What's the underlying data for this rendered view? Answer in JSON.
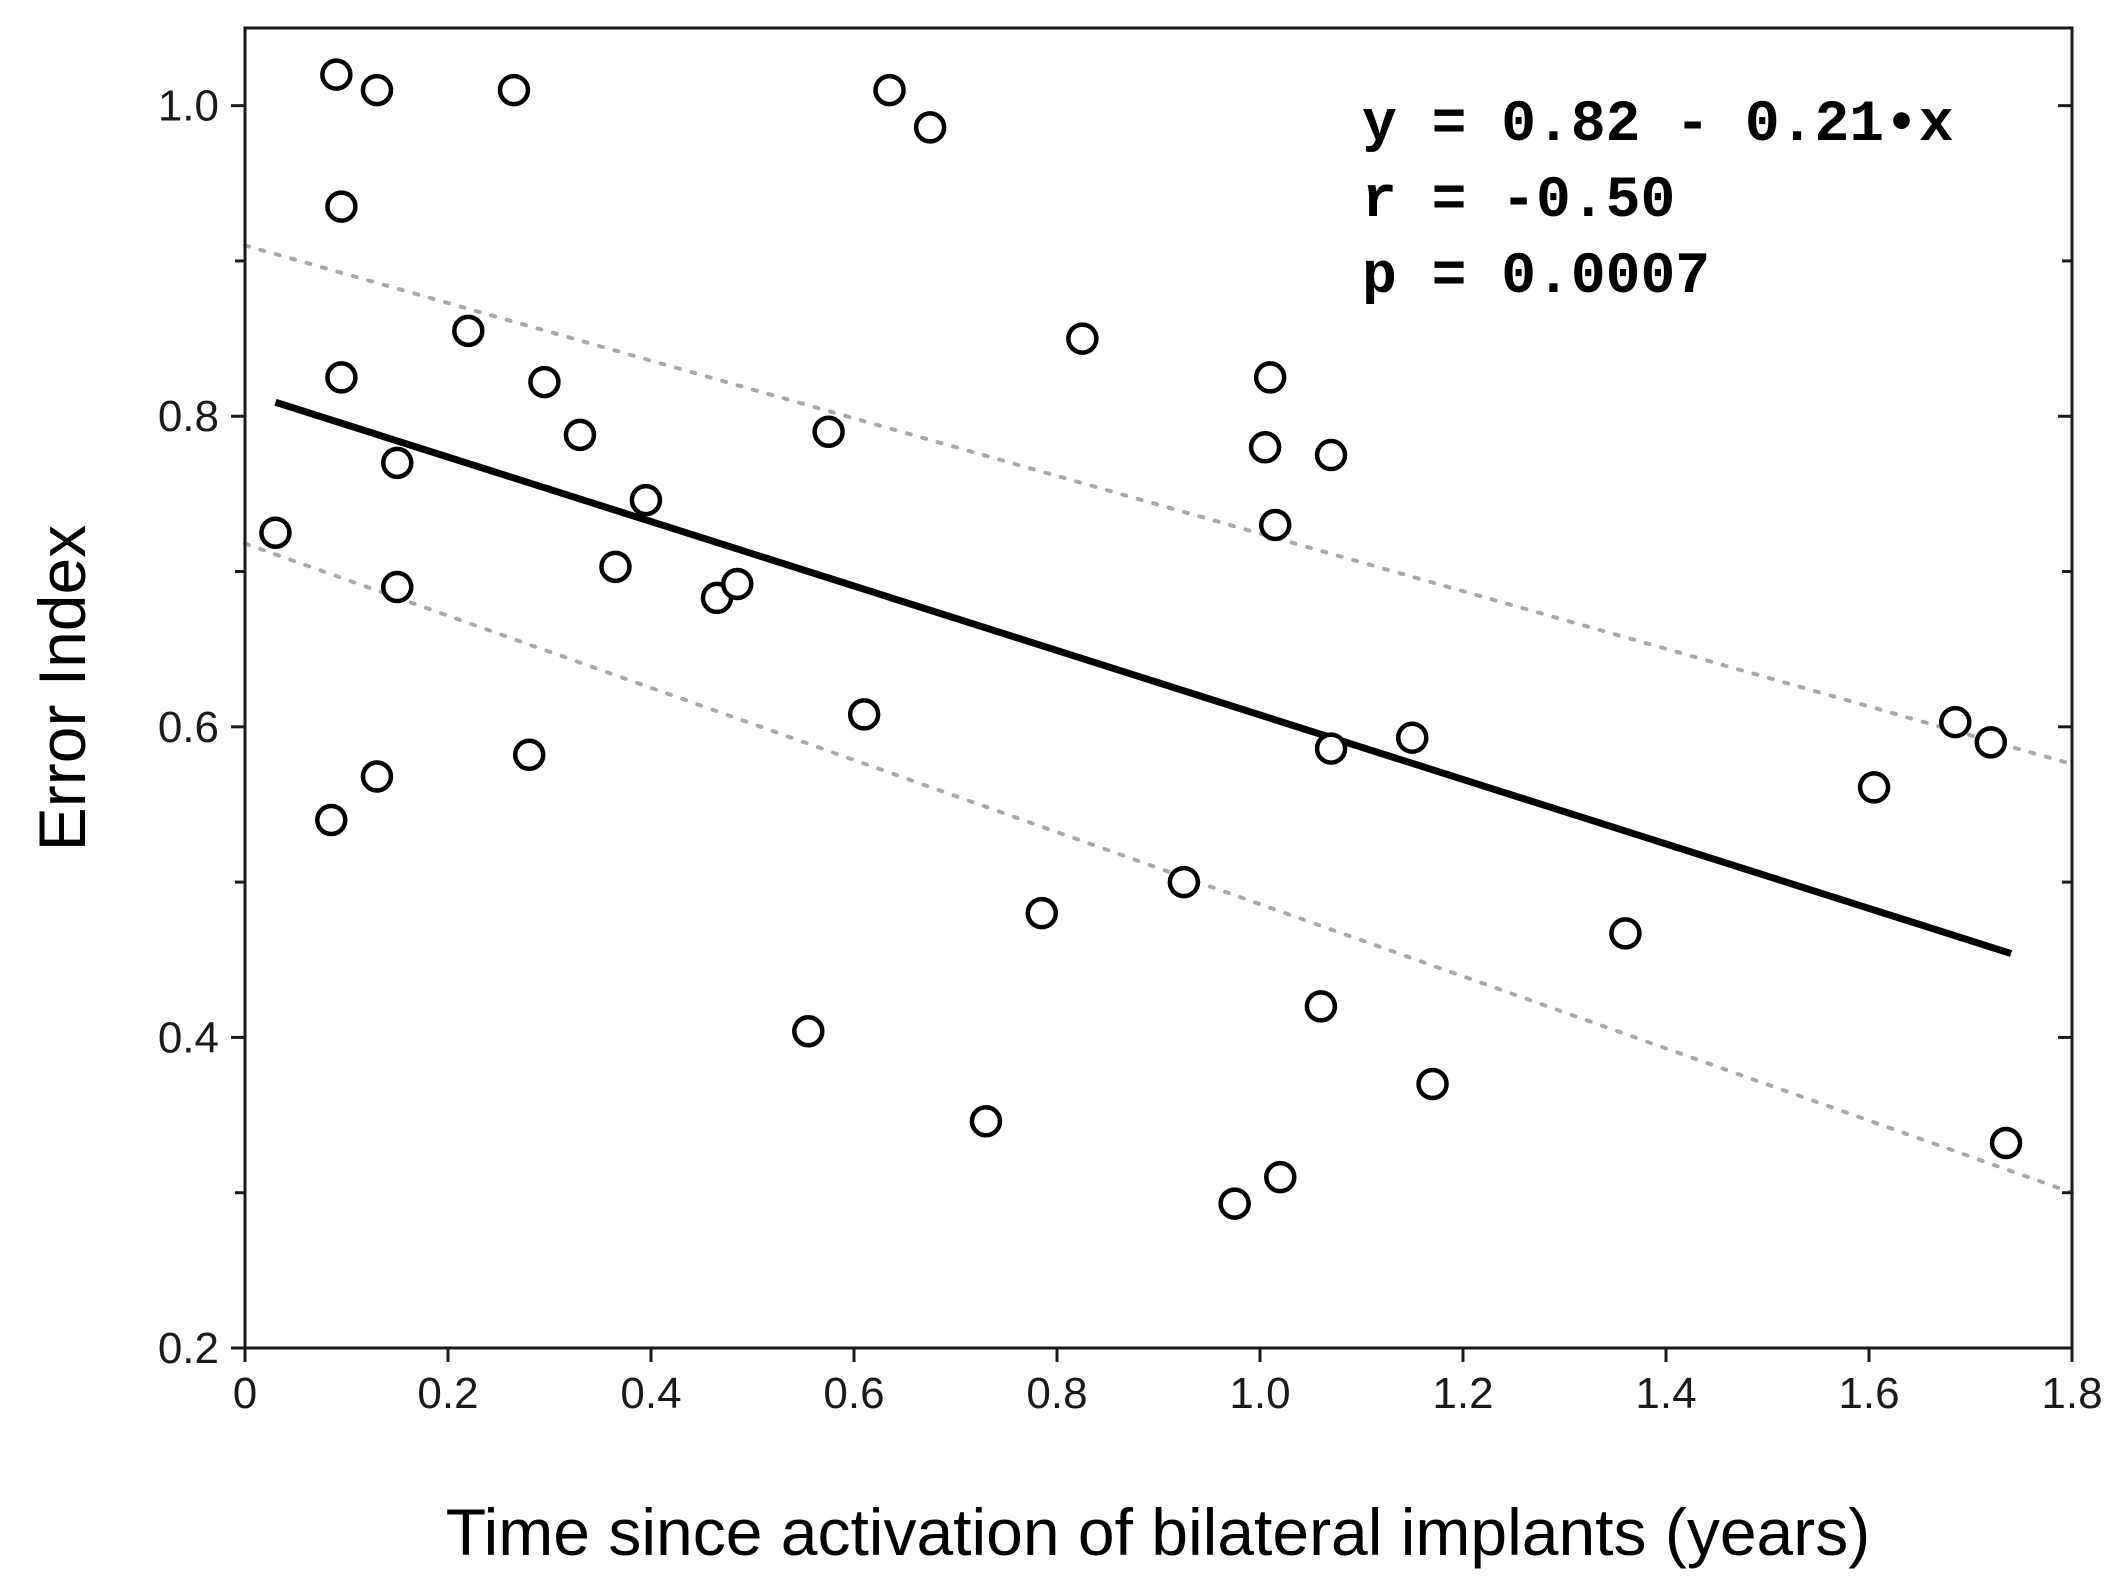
{
  "chart_data": {
    "type": "scatter",
    "title": "",
    "xlabel": "Time since activation of bilateral implants (years)",
    "ylabel": "Error Index",
    "xlim": [
      0,
      1.8
    ],
    "ylim": [
      0.2,
      1.05
    ],
    "xticks": [
      0,
      0.2,
      0.4,
      0.6,
      0.8,
      1.0,
      1.2,
      1.4,
      1.6,
      1.8
    ],
    "xtick_labels": [
      "0",
      "0.2",
      "0.4",
      "0.6",
      "0.8",
      "1.0",
      "1.2",
      "1.4",
      "1.6",
      "1.8"
    ],
    "yticks": [
      0.2,
      0.4,
      0.6,
      0.8,
      1.0
    ],
    "ytick_labels": [
      "0.2",
      "0.4",
      "0.6",
      "0.8",
      "1.0"
    ],
    "minor_yticks": [
      0.3,
      0.5,
      0.7,
      0.9
    ],
    "grid": false,
    "points": [
      {
        "x": 0.03,
        "y": 0.725
      },
      {
        "x": 0.085,
        "y": 0.54
      },
      {
        "x": 0.09,
        "y": 1.02
      },
      {
        "x": 0.095,
        "y": 0.935
      },
      {
        "x": 0.095,
        "y": 0.825
      },
      {
        "x": 0.13,
        "y": 1.01
      },
      {
        "x": 0.13,
        "y": 0.568
      },
      {
        "x": 0.15,
        "y": 0.77
      },
      {
        "x": 0.15,
        "y": 0.69
      },
      {
        "x": 0.22,
        "y": 0.855
      },
      {
        "x": 0.265,
        "y": 1.01
      },
      {
        "x": 0.28,
        "y": 0.582
      },
      {
        "x": 0.295,
        "y": 0.822
      },
      {
        "x": 0.33,
        "y": 0.788
      },
      {
        "x": 0.365,
        "y": 0.703
      },
      {
        "x": 0.395,
        "y": 0.746
      },
      {
        "x": 0.465,
        "y": 0.683
      },
      {
        "x": 0.485,
        "y": 0.692
      },
      {
        "x": 0.555,
        "y": 0.404
      },
      {
        "x": 0.575,
        "y": 0.79
      },
      {
        "x": 0.61,
        "y": 0.608
      },
      {
        "x": 0.635,
        "y": 1.01
      },
      {
        "x": 0.675,
        "y": 0.986
      },
      {
        "x": 0.73,
        "y": 0.346
      },
      {
        "x": 0.785,
        "y": 0.48
      },
      {
        "x": 0.825,
        "y": 0.85
      },
      {
        "x": 0.925,
        "y": 0.5
      },
      {
        "x": 0.975,
        "y": 0.293
      },
      {
        "x": 1.005,
        "y": 0.78
      },
      {
        "x": 1.01,
        "y": 0.825
      },
      {
        "x": 1.015,
        "y": 0.73
      },
      {
        "x": 1.02,
        "y": 0.31
      },
      {
        "x": 1.06,
        "y": 0.42
      },
      {
        "x": 1.07,
        "y": 0.775
      },
      {
        "x": 1.07,
        "y": 0.586
      },
      {
        "x": 1.15,
        "y": 0.593
      },
      {
        "x": 1.17,
        "y": 0.37
      },
      {
        "x": 1.36,
        "y": 0.467
      },
      {
        "x": 1.605,
        "y": 0.561
      },
      {
        "x": 1.685,
        "y": 0.603
      },
      {
        "x": 1.72,
        "y": 0.59
      },
      {
        "x": 1.735,
        "y": 0.332
      }
    ],
    "fit_line": {
      "x": [
        0.03,
        1.74
      ],
      "y": [
        0.809,
        0.454
      ]
    },
    "confidence_band": {
      "upper": {
        "x": [
          0.0,
          1.8
        ],
        "y": [
          0.91,
          0.576
        ]
      },
      "lower": {
        "x": [
          0.0,
          1.8
        ],
        "y": [
          0.718,
          0.3
        ]
      }
    },
    "annotations": [
      "y = 0.82 - 0.21•x",
      "r = -0.50",
      "p = 0.0007"
    ]
  }
}
